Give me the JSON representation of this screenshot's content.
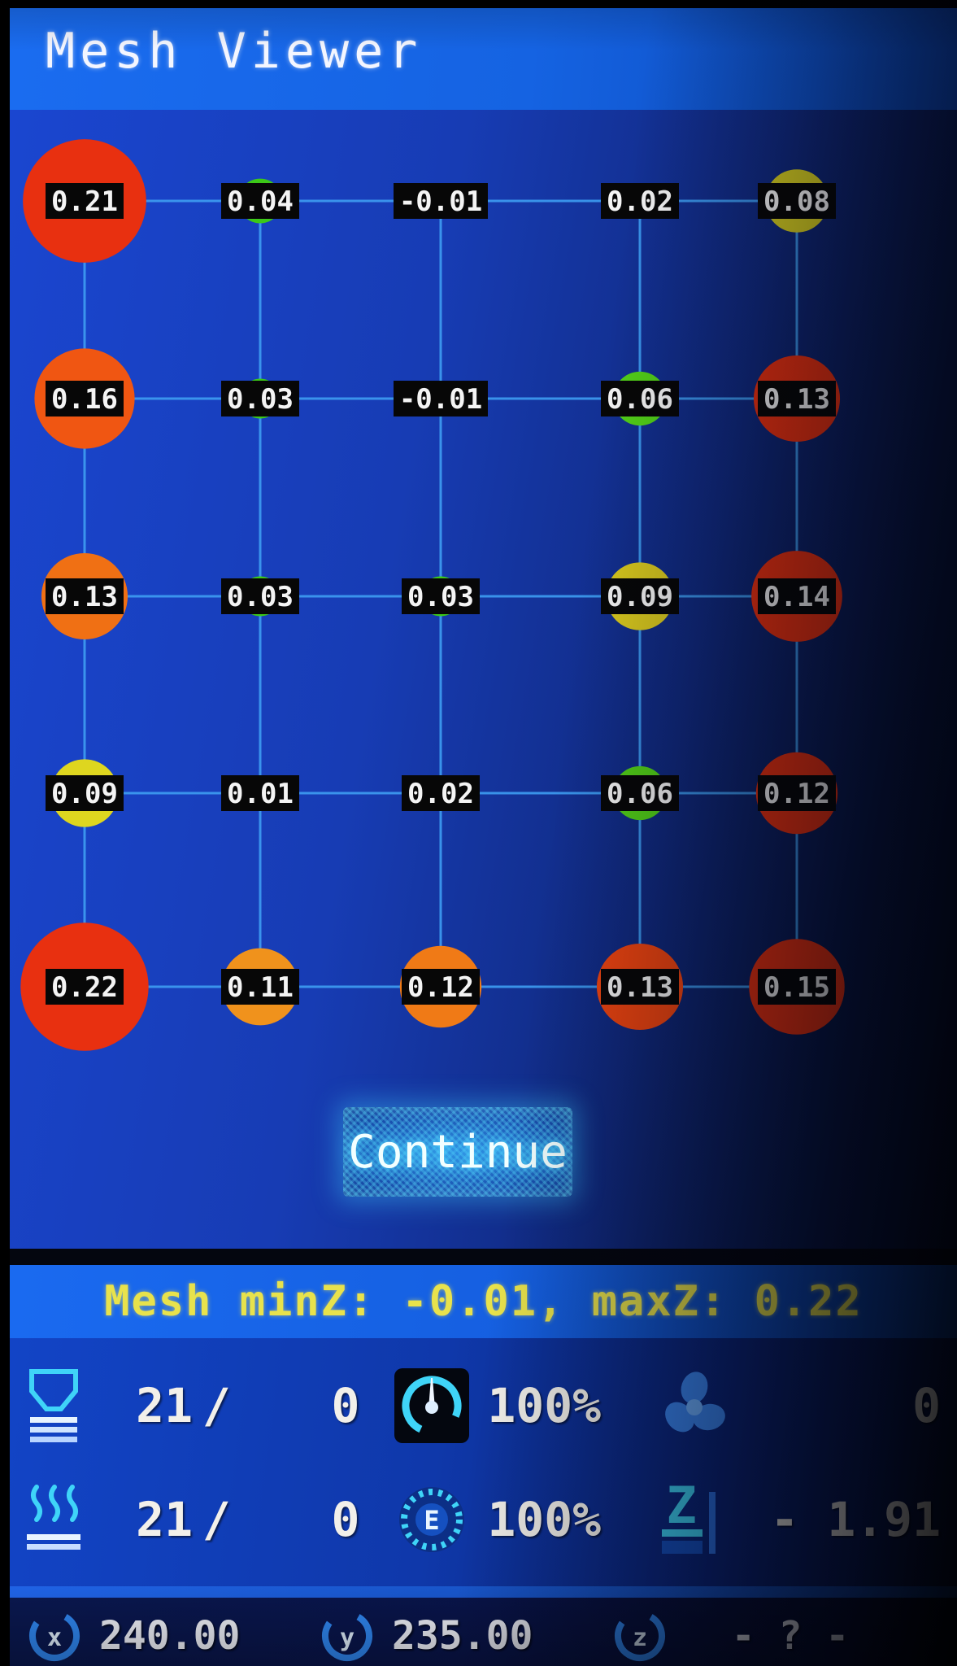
{
  "header": {
    "title": "Mesh Viewer"
  },
  "mesh": {
    "summary": "Mesh minZ: -0.01, maxZ: 0.22",
    "min_z": "-0.01",
    "max_z": "0.22",
    "continue_label": "Continue",
    "grid_rows": 5,
    "grid_cols": 5,
    "points": [
      {
        "label": "0.21",
        "z": 0.21,
        "color": "#e83010"
      },
      {
        "label": "0.04",
        "z": 0.04,
        "color": "#3cc818"
      },
      {
        "label": "-0.01",
        "z": -0.01,
        "color": "#3cc818"
      },
      {
        "label": "0.02",
        "z": 0.02,
        "color": "#3cc818"
      },
      {
        "label": "0.08",
        "z": 0.08,
        "color": "#d4cc20"
      },
      {
        "label": "0.16",
        "z": 0.16,
        "color": "#f05612"
      },
      {
        "label": "0.03",
        "z": 0.03,
        "color": "#3cc818"
      },
      {
        "label": "-0.01",
        "z": -0.01,
        "color": "#3cc818"
      },
      {
        "label": "0.06",
        "z": 0.06,
        "color": "#52d018"
      },
      {
        "label": "0.13",
        "z": 0.13,
        "color": "#e83010"
      },
      {
        "label": "0.13",
        "z": 0.13,
        "color": "#f07014"
      },
      {
        "label": "0.03",
        "z": 0.03,
        "color": "#3cc818"
      },
      {
        "label": "0.03",
        "z": 0.03,
        "color": "#3cc818"
      },
      {
        "label": "0.09",
        "z": 0.09,
        "color": "#d8c81e"
      },
      {
        "label": "0.14",
        "z": 0.14,
        "color": "#e83010"
      },
      {
        "label": "0.09",
        "z": 0.09,
        "color": "#ded61f"
      },
      {
        "label": "0.01",
        "z": 0.01,
        "color": "#3cc818"
      },
      {
        "label": "0.02",
        "z": 0.02,
        "color": "#3cc818"
      },
      {
        "label": "0.06",
        "z": 0.06,
        "color": "#52d018"
      },
      {
        "label": "0.12",
        "z": 0.12,
        "color": "#e83010"
      },
      {
        "label": "0.22",
        "z": 0.22,
        "color": "#e83010"
      },
      {
        "label": "0.11",
        "z": 0.11,
        "color": "#f0921c"
      },
      {
        "label": "0.12",
        "z": 0.12,
        "color": "#f07a16"
      },
      {
        "label": "0.13",
        "z": 0.13,
        "color": "#ee4410"
      },
      {
        "label": "0.15",
        "z": 0.15,
        "color": "#e83010"
      }
    ]
  },
  "status": {
    "hotend_current": "21",
    "hotend_sep": "/",
    "hotend_target": "0",
    "bed_current": "21",
    "bed_sep": "/",
    "bed_target": "0",
    "feedrate": "100%",
    "flow": "100%",
    "flow_icon_letter": "E",
    "fan_speed": "0",
    "z_icon_letter": "Z",
    "z_offset": "- 1.91"
  },
  "position": {
    "x_icon_letter": "x",
    "x_value": "240.00",
    "y_icon_letter": "y",
    "y_value": "235.00",
    "z_icon_letter": "z",
    "z_value": "- ? -"
  }
}
